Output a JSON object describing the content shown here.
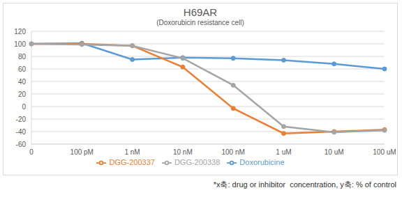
{
  "chart_data": {
    "type": "line",
    "title": "H69AR",
    "subtitle": "(Doxorubicin resistance cell)",
    "annotation": "*x축: drug or inhibitor  concentration, y축: % of control",
    "categories": [
      "0",
      "100 pM",
      "1 nM",
      "10 nM",
      "100 nM",
      "1 uM",
      "10 uM",
      "100 uM"
    ],
    "series": [
      {
        "name": "Doxorubicine",
        "color": "#5b9bd5",
        "values": [
          100,
          101,
          75,
          78,
          77,
          74,
          68,
          60
        ]
      },
      {
        "name": "DGG-200337",
        "color": "#ed7d31",
        "values": [
          100,
          100,
          97,
          63,
          -3,
          -43,
          -40,
          -37
        ]
      },
      {
        "name": "DGG-200338",
        "color": "#a5a5a5",
        "values": [
          100,
          99,
          97,
          77,
          34,
          -32,
          -41,
          -38
        ]
      }
    ],
    "ylim": [
      -60,
      120
    ],
    "yticks": [
      -60,
      -40,
      -20,
      0,
      20,
      40,
      60,
      80,
      100,
      120
    ],
    "grid": true,
    "legend": "bottom",
    "marker": "circle"
  }
}
